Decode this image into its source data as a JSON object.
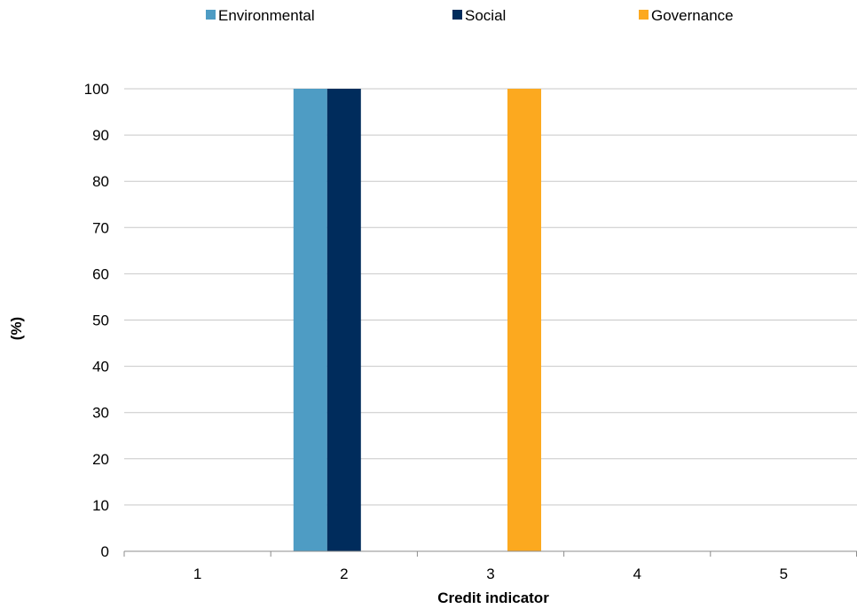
{
  "chart_data": {
    "type": "bar",
    "title": "",
    "xlabel": "Credit indicator",
    "ylabel": "(%)",
    "categories": [
      "1",
      "2",
      "3",
      "4",
      "5"
    ],
    "series": [
      {
        "name": "Environmental",
        "color": "#4e9cc4",
        "values": [
          0,
          100,
          0,
          0,
          0
        ]
      },
      {
        "name": "Social",
        "color": "#002c5c",
        "values": [
          0,
          100,
          0,
          0,
          0
        ]
      },
      {
        "name": "Governance",
        "color": "#fca91f",
        "values": [
          0,
          0,
          100,
          0,
          0
        ]
      }
    ],
    "ylim": [
      0,
      100
    ],
    "yticks": [
      0,
      10,
      20,
      30,
      40,
      50,
      60,
      70,
      80,
      90,
      100
    ],
    "grid": true,
    "legend_position": "top"
  }
}
